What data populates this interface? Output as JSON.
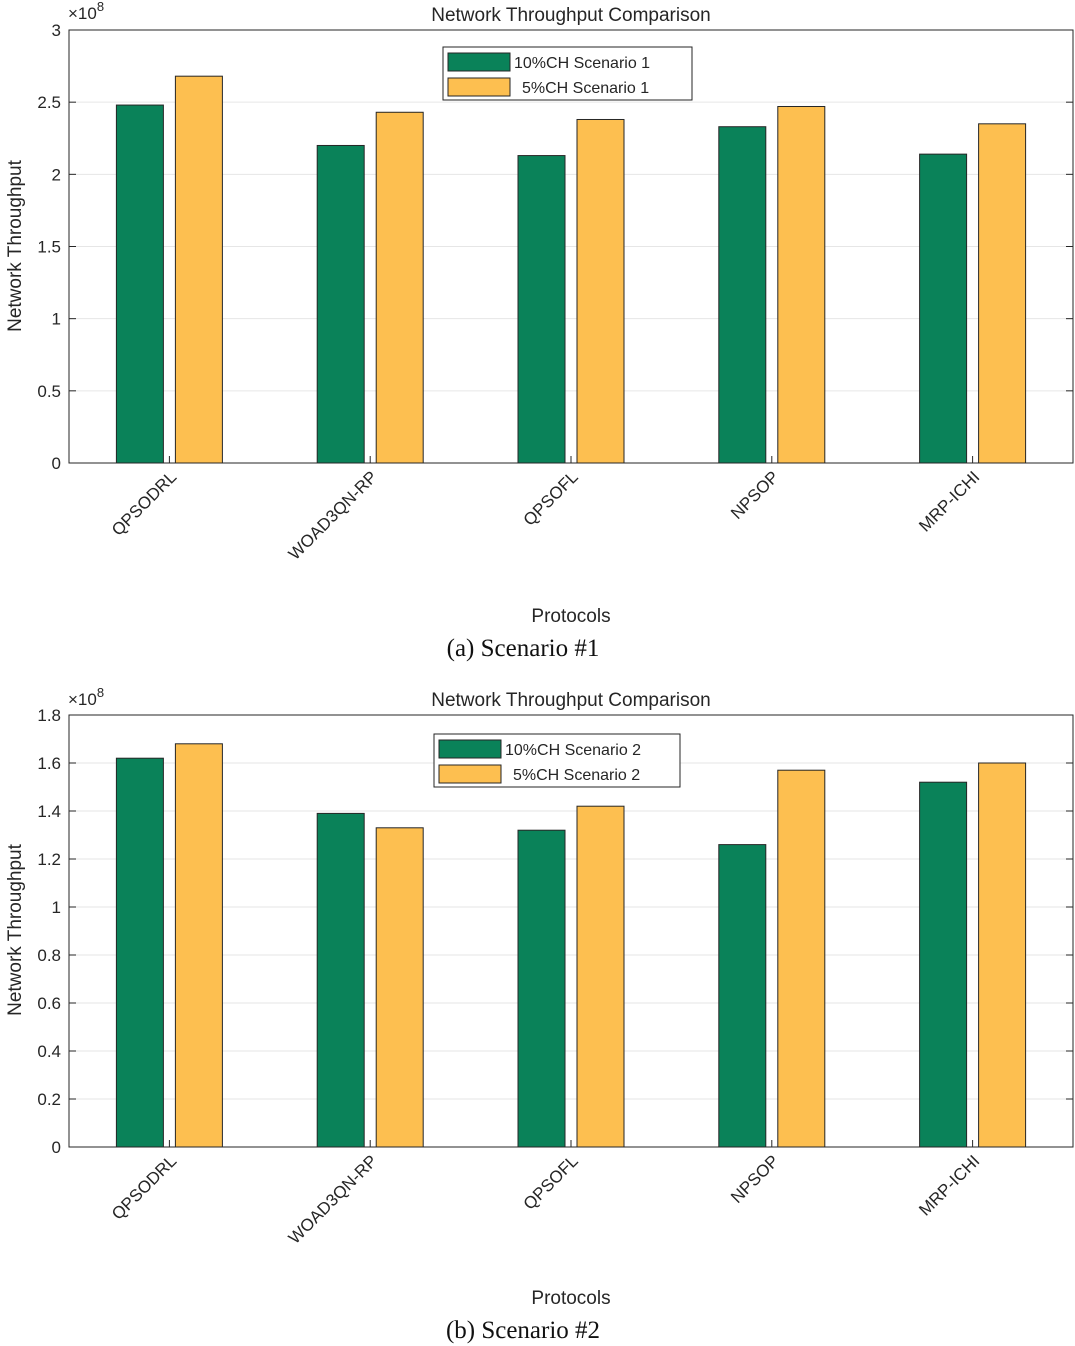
{
  "chart_data": [
    {
      "type": "bar",
      "title": "Network Throughput Comparison",
      "xlabel": "Protocols",
      "ylabel": "Network Throughput",
      "y_exponent": "×10",
      "y_exponent_power": "8",
      "caption": "(a) Scenario #1",
      "categories": [
        "QPSODRL",
        "WOAD3QN-RP",
        "QPSOFL",
        "NPSOP",
        "MRP-ICHI"
      ],
      "ylim": [
        0,
        3
      ],
      "yticks": [
        0,
        0.5,
        1,
        1.5,
        2,
        2.5,
        3
      ],
      "ytick_labels": [
        "0",
        "0.5",
        "1",
        "1.5",
        "2",
        "2.5",
        "3"
      ],
      "grid": true,
      "legend_position": "top-center",
      "series": [
        {
          "name": "10%CH Scenario 1",
          "color": "#0a8259",
          "values": [
            2.48,
            2.2,
            2.13,
            2.33,
            2.14
          ]
        },
        {
          "name": "5%CH Scenario 1",
          "color": "#fdbf50",
          "values": [
            2.68,
            2.43,
            2.38,
            2.47,
            2.35
          ]
        }
      ]
    },
    {
      "type": "bar",
      "title": "Network Throughput Comparison",
      "xlabel": "Protocols",
      "ylabel": "Network Throughput",
      "y_exponent": "×10",
      "y_exponent_power": "8",
      "caption": "(b) Scenario #2",
      "categories": [
        "QPSODRL",
        "WOAD3QN-RP",
        "QPSOFL",
        "NPSOP",
        "MRP-ICHI"
      ],
      "ylim": [
        0,
        1.8
      ],
      "yticks": [
        0,
        0.2,
        0.4,
        0.6,
        0.8,
        1,
        1.2,
        1.4,
        1.6,
        1.8
      ],
      "ytick_labels": [
        "0",
        "0.2",
        "0.4",
        "0.6",
        "0.8",
        "1",
        "1.2",
        "1.4",
        "1.6",
        "1.8"
      ],
      "grid": true,
      "legend_position": "top-center",
      "series": [
        {
          "name": "10%CH Scenario 2",
          "color": "#0a8259",
          "values": [
            1.62,
            1.39,
            1.32,
            1.26,
            1.52
          ]
        },
        {
          "name": "5%CH Scenario 2",
          "color": "#fdbf50",
          "values": [
            1.68,
            1.33,
            1.42,
            1.57,
            1.6
          ]
        }
      ]
    }
  ]
}
